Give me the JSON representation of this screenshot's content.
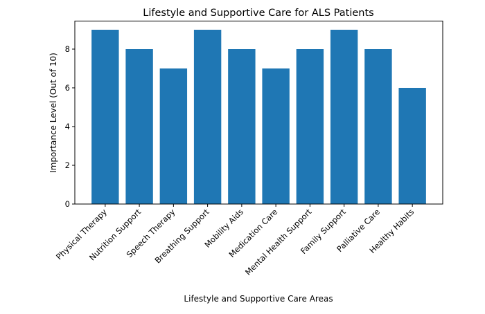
{
  "chart_data": {
    "type": "bar",
    "title": "Lifestyle and Supportive Care for ALS Patients",
    "xlabel": "Lifestyle and Supportive Care Areas",
    "ylabel": "Importance Level (Out of 10)",
    "categories": [
      "Physical Therapy",
      "Nutrition Support",
      "Speech Therapy",
      "Breathing Support",
      "Mobility Aids",
      "Medication Care",
      "Mental Health Support",
      "Family Support",
      "Palliative Care",
      "Healthy Habits"
    ],
    "values": [
      9,
      8,
      7,
      9,
      8,
      7,
      8,
      9,
      8,
      6
    ],
    "ylim": [
      0,
      9.45
    ],
    "yticks": [
      0,
      2,
      4,
      6,
      8
    ],
    "grid": false,
    "bar_color": "#1f77b4"
  }
}
